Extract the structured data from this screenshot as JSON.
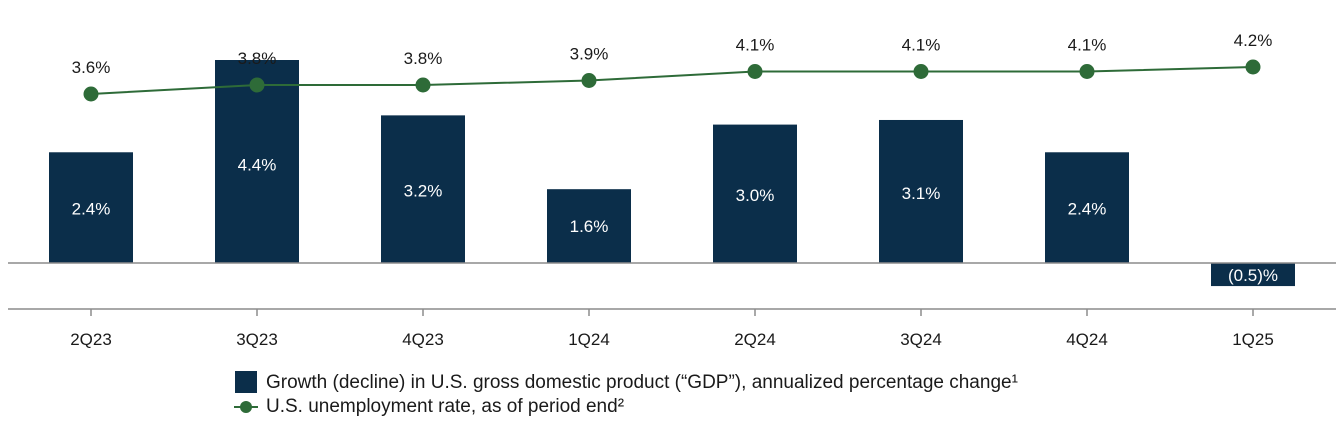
{
  "chart_data": {
    "type": "bar+line",
    "categories": [
      "2Q23",
      "3Q23",
      "4Q23",
      "1Q24",
      "2Q24",
      "3Q24",
      "4Q24",
      "1Q25"
    ],
    "series": [
      {
        "name": "Growth (decline) in U.S. gross domestic product (“GDP”), annualized percentage change¹",
        "type": "bar",
        "axis": "left",
        "values": [
          2.4,
          4.4,
          3.2,
          1.6,
          3.0,
          3.1,
          2.4,
          -0.5
        ],
        "labels": [
          "2.4%",
          "4.4%",
          "3.2%",
          "1.6%",
          "3.0%",
          "3.1%",
          "2.4%",
          "(0.5)%"
        ],
        "color": "#0b2e4a"
      },
      {
        "name": "U.S. unemployment rate, as of period end²",
        "type": "line",
        "axis": "right",
        "values": [
          3.6,
          3.8,
          3.8,
          3.9,
          4.1,
          4.1,
          4.1,
          4.2
        ],
        "labels": [
          "3.6%",
          "3.8%",
          "3.8%",
          "3.9%",
          "4.1%",
          "4.1%",
          "4.1%",
          "4.2%"
        ],
        "color": "#2e6b38"
      }
    ],
    "bar_ylim": [
      -1.0,
      4.4
    ],
    "line_ylim": [
      2.6,
      4.6
    ],
    "axis_color": "#8c8c8c",
    "legend_position": "bottom-center",
    "grid": false
  }
}
